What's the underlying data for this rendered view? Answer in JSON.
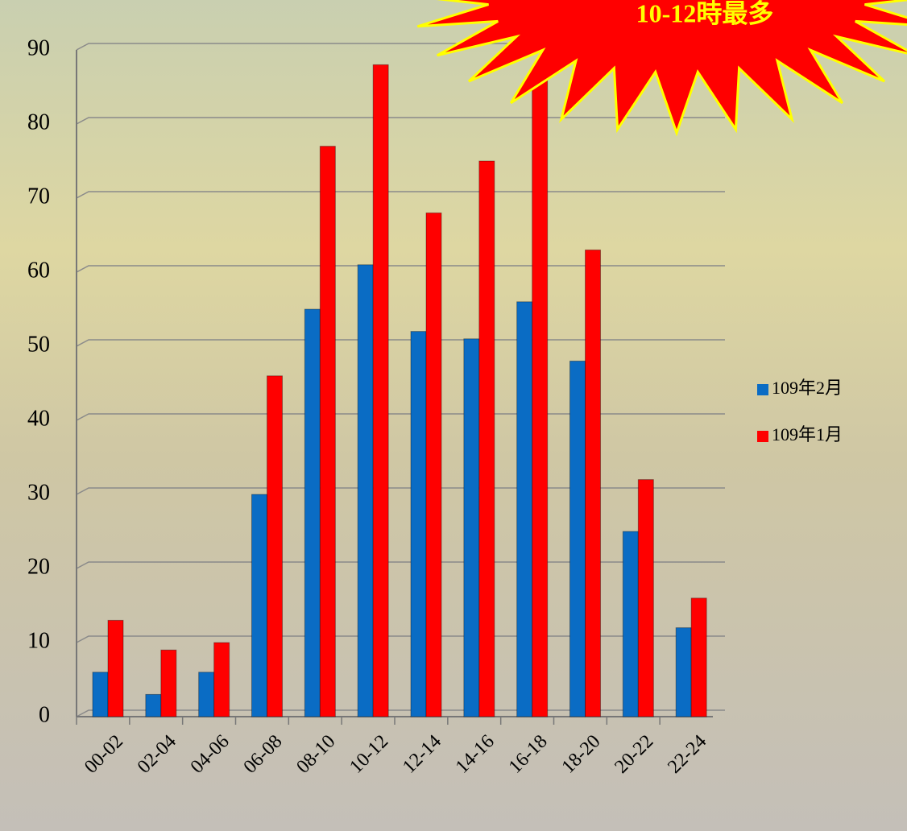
{
  "chart_data": {
    "type": "bar",
    "annotation": "10-12時最多",
    "categories": [
      "00-02",
      "02-04",
      "04-06",
      "06-08",
      "08-10",
      "10-12",
      "12-14",
      "14-16",
      "16-18",
      "18-20",
      "20-22",
      "22-24"
    ],
    "series": [
      {
        "name": "109年2月",
        "color": "#0a6cc4",
        "values": [
          6,
          3,
          6,
          30,
          55,
          61,
          52,
          51,
          56,
          48,
          25,
          12
        ]
      },
      {
        "name": "109年1月",
        "color": "#ff0000",
        "values": [
          13,
          9,
          10,
          46,
          77,
          88,
          68,
          75,
          87,
          63,
          32,
          16
        ]
      }
    ],
    "ylim": [
      0,
      90
    ],
    "yticks": [
      0,
      10,
      20,
      30,
      40,
      50,
      60,
      70,
      80,
      90
    ],
    "grid": true,
    "legend": "right"
  }
}
